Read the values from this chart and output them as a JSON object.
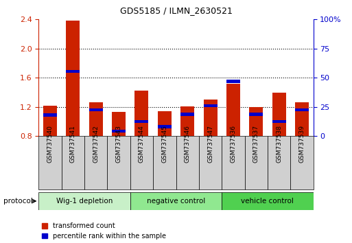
{
  "title": "GDS5185 / ILMN_2630521",
  "samples": [
    "GSM737540",
    "GSM737541",
    "GSM737542",
    "GSM737543",
    "GSM737544",
    "GSM737545",
    "GSM737546",
    "GSM737547",
    "GSM737536",
    "GSM737537",
    "GSM737538",
    "GSM737539"
  ],
  "red_values": [
    1.22,
    2.38,
    1.26,
    1.13,
    1.42,
    1.14,
    1.21,
    1.3,
    1.52,
    1.2,
    1.4,
    1.26
  ],
  "blue_values": [
    1.09,
    1.69,
    1.16,
    0.87,
    1.0,
    0.93,
    1.1,
    1.22,
    1.55,
    1.1,
    1.0,
    1.16
  ],
  "ylim_left": [
    0.8,
    2.4
  ],
  "ylim_right": [
    0,
    100
  ],
  "yticks_left": [
    0.8,
    1.2,
    1.6,
    2.0,
    2.4
  ],
  "yticks_right": [
    0,
    25,
    50,
    75,
    100
  ],
  "ytick_labels_right": [
    "0",
    "25",
    "50",
    "75",
    "100%"
  ],
  "groups": [
    {
      "label": "Wig-1 depletion",
      "start": 0,
      "end": 4,
      "color": "#c8f0c8"
    },
    {
      "label": "negative control",
      "start": 4,
      "end": 8,
      "color": "#90e890"
    },
    {
      "label": "vehicle control",
      "start": 8,
      "end": 12,
      "color": "#50d050"
    }
  ],
  "bar_color": "#cc2200",
  "blue_color": "#0000cc",
  "bar_width": 0.6,
  "grid_color": "#000000",
  "background_color": "#ffffff",
  "sample_box_color": "#d0d0d0",
  "legend_red_label": "transformed count",
  "legend_blue_label": "percentile rank within the sample",
  "protocol_label": "protocol"
}
